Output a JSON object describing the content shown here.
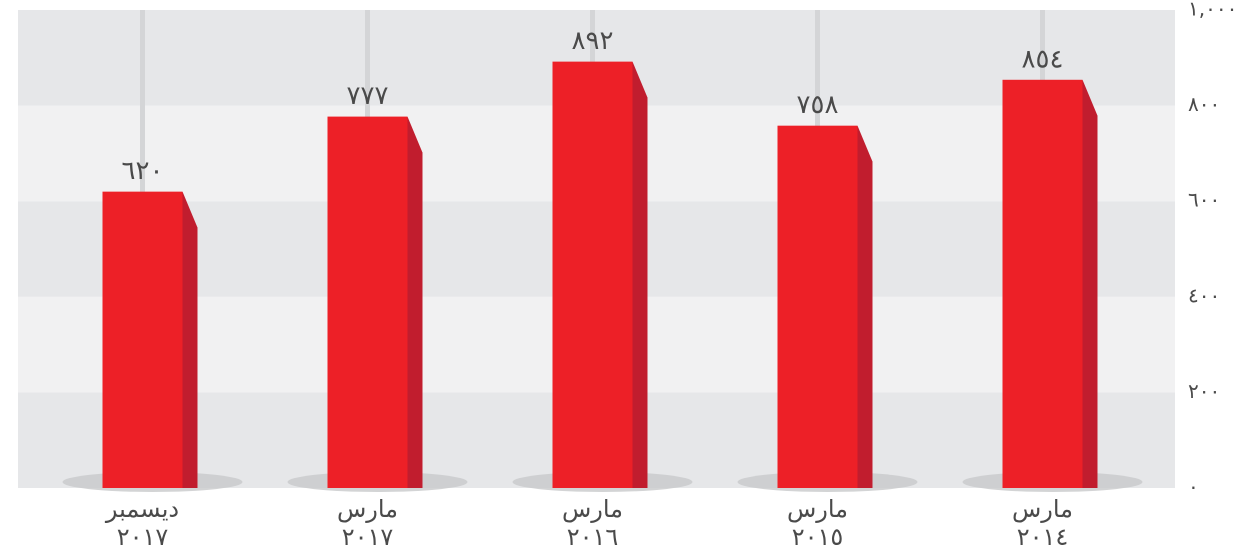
{
  "chart_data": {
    "type": "bar",
    "categories": [
      [
        "ديسمبر",
        "٢٠١٧"
      ],
      [
        "مارس",
        "٢٠١٧"
      ],
      [
        "مارس",
        "٢٠١٦"
      ],
      [
        "مارس",
        "٢٠١٥"
      ],
      [
        "مارس",
        "٢٠١٤"
      ]
    ],
    "values": [
      620,
      777,
      892,
      758,
      854
    ],
    "value_labels": [
      "٦٢٠",
      "٧٧٧",
      "٨٩٢",
      "٧٥٨",
      "٨٥٤"
    ],
    "color": "#ed2027",
    "ylim": [
      0,
      1000
    ],
    "yticks": [
      {
        "value": 0,
        "label": "٠"
      },
      {
        "value": 200,
        "label": "٢٠٠"
      },
      {
        "value": 400,
        "label": "٤٠٠"
      },
      {
        "value": 600,
        "label": "٦٠٠"
      },
      {
        "value": 800,
        "label": "٨٠٠"
      },
      {
        "value": 1000,
        "label": "١,٠٠٠"
      }
    ],
    "grid": true
  }
}
